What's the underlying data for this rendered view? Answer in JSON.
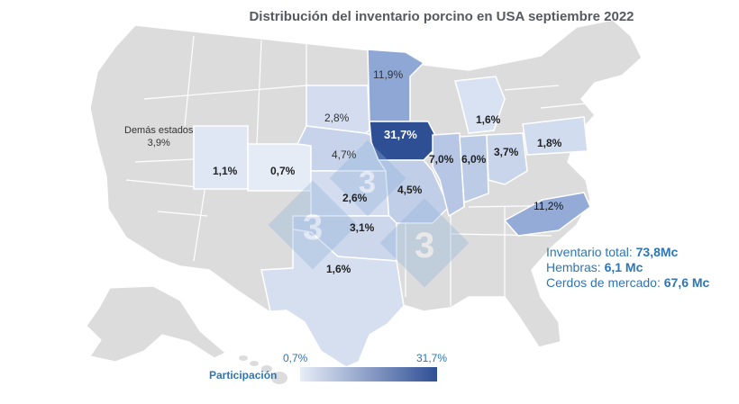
{
  "title": "Distribución del inventario porcino en USA septiembre 2022",
  "colors": {
    "base": "#dcdcdc",
    "border": "#ffffff",
    "low": "#dfe7f4",
    "mid": "#9eb3da",
    "high": "#2f4f95",
    "accent": "#2e75b6"
  },
  "states": {
    "iowa": "31,7%",
    "minnesota": "11,9%",
    "north_carolina": "11,2%",
    "illinois": "7,0%",
    "indiana": "6,0%",
    "nebraska": "4,7%",
    "missouri": "4,5%",
    "ohio": "3,7%",
    "oklahoma": "3,1%",
    "south_dakota": "2,8%",
    "kansas": "2,6%",
    "pennsylvania": "1,8%",
    "michigan": "1,6%",
    "texas": "1,6%",
    "utah": "1,1%",
    "colorado": "0,7%"
  },
  "other_states": {
    "label": "Demás estados",
    "value": "3,9%"
  },
  "stats": {
    "total_label": "Inventario total:",
    "total_value": "73,8Mc",
    "sows_label": "Hembras:",
    "sows_value": "6,1 Mc",
    "market_label": "Cerdos de mercado:",
    "market_value": "67,6 Mc"
  },
  "legend": {
    "title": "Participación",
    "min": "0,7%",
    "max": "31,7%"
  },
  "watermark": "3"
}
